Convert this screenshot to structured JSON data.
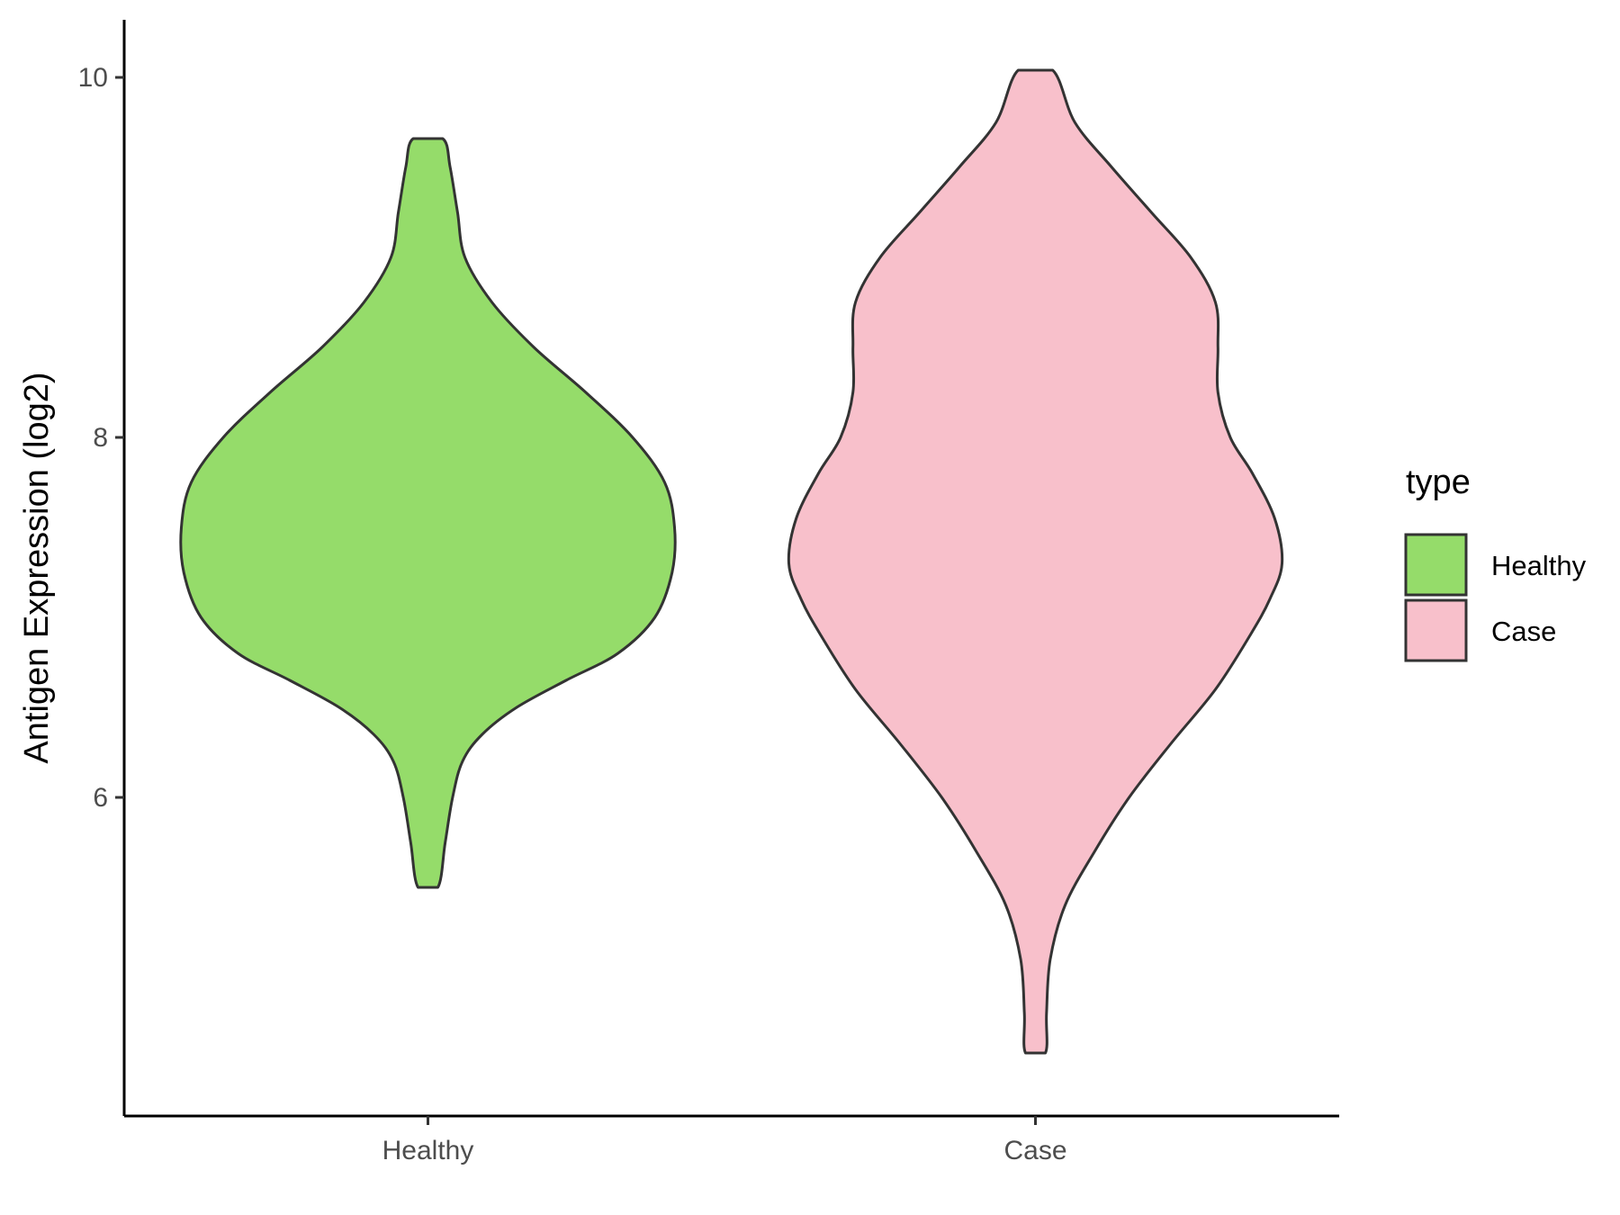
{
  "chart_data": {
    "type": "violin",
    "title": "",
    "xlabel": "",
    "ylabel": "Antigen Expression (log2)",
    "ylim": [
      4.23,
      10.32
    ],
    "yticks": [
      6,
      8,
      10
    ],
    "categories": [
      "Healthy",
      "Case"
    ],
    "grid": false,
    "legend": {
      "title": "type",
      "placement": "right",
      "entries": [
        {
          "label": "Healthy",
          "color": "#95dc6a"
        },
        {
          "label": "Case",
          "color": "#f8c0cb"
        }
      ]
    },
    "series": [
      {
        "name": "Healthy",
        "color": "#95dc6a",
        "min": 5.5,
        "max": 9.66,
        "density_profile": [
          [
            5.5,
            0.04
          ],
          [
            5.75,
            0.07
          ],
          [
            6.0,
            0.1
          ],
          [
            6.2,
            0.14
          ],
          [
            6.35,
            0.22
          ],
          [
            6.5,
            0.36
          ],
          [
            6.65,
            0.56
          ],
          [
            6.8,
            0.77
          ],
          [
            7.0,
            0.92
          ],
          [
            7.25,
            0.99
          ],
          [
            7.5,
            1.0
          ],
          [
            7.75,
            0.96
          ],
          [
            8.0,
            0.83
          ],
          [
            8.25,
            0.64
          ],
          [
            8.5,
            0.43
          ],
          [
            8.75,
            0.26
          ],
          [
            9.0,
            0.15
          ],
          [
            9.25,
            0.12
          ],
          [
            9.5,
            0.09
          ],
          [
            9.66,
            0.06
          ]
        ]
      },
      {
        "name": "Case",
        "color": "#f8c0cb",
        "min": 4.58,
        "max": 10.04,
        "density_profile": [
          [
            4.58,
            0.04
          ],
          [
            4.8,
            0.045
          ],
          [
            5.1,
            0.06
          ],
          [
            5.4,
            0.12
          ],
          [
            5.7,
            0.24
          ],
          [
            6.0,
            0.38
          ],
          [
            6.3,
            0.55
          ],
          [
            6.6,
            0.73
          ],
          [
            6.9,
            0.87
          ],
          [
            7.1,
            0.95
          ],
          [
            7.3,
            1.0
          ],
          [
            7.55,
            0.97
          ],
          [
            7.8,
            0.88
          ],
          [
            8.0,
            0.79
          ],
          [
            8.25,
            0.74
          ],
          [
            8.5,
            0.74
          ],
          [
            8.75,
            0.73
          ],
          [
            9.0,
            0.63
          ],
          [
            9.25,
            0.47
          ],
          [
            9.5,
            0.31
          ],
          [
            9.75,
            0.16
          ],
          [
            10.04,
            0.07
          ]
        ]
      }
    ]
  }
}
